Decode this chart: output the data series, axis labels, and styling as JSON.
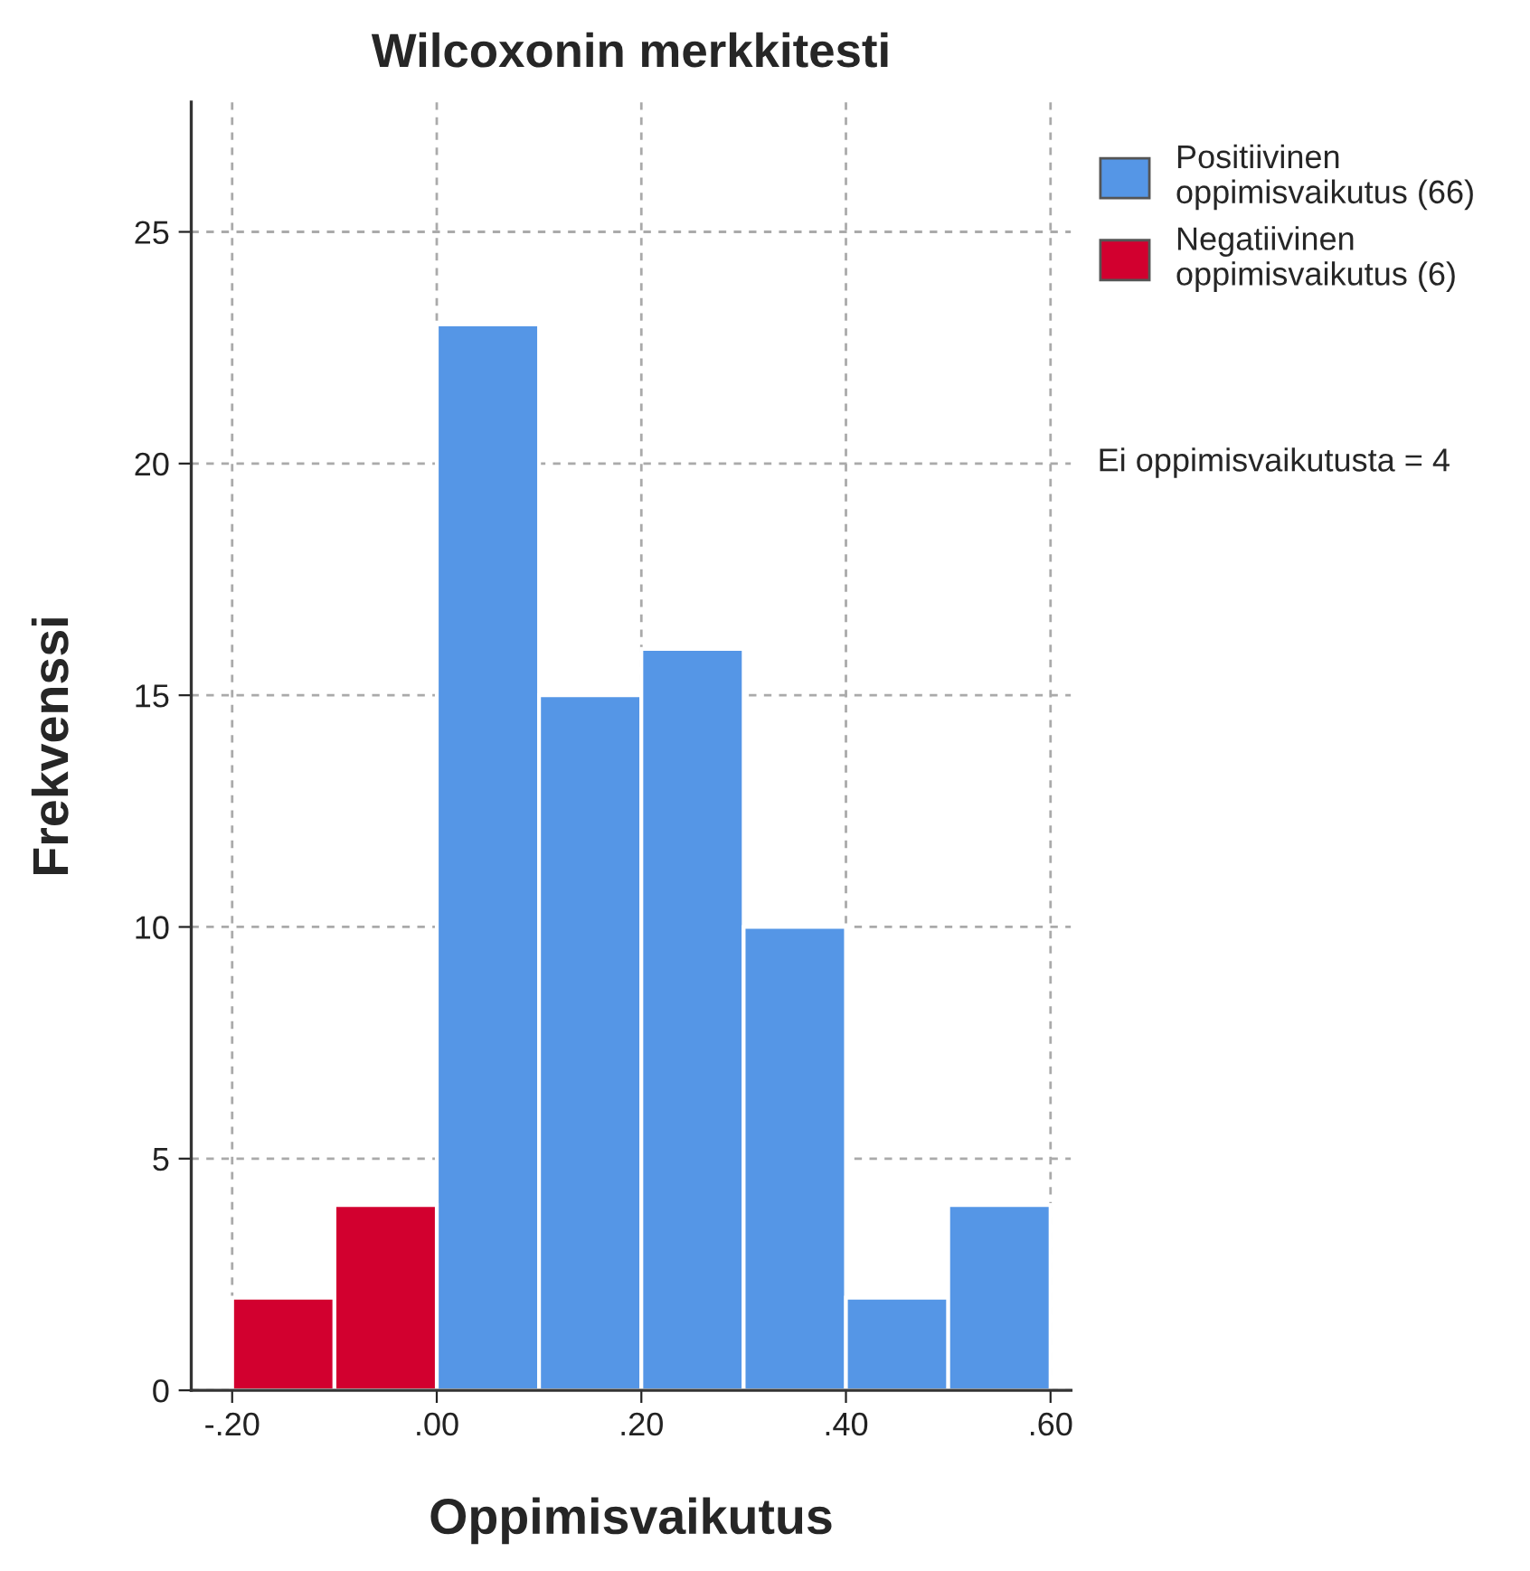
{
  "chart_data": {
    "type": "histogram",
    "title": "Wilcoxonin merkkitesti",
    "xlabel": "Oppimisvaikutus",
    "ylabel": "Frekvenssi",
    "bins": [
      -0.2,
      -0.1,
      0.0,
      0.1,
      0.2,
      0.3,
      0.4,
      0.5,
      0.6
    ],
    "series": [
      {
        "name": "Positiivinen oppimisvaikutus (66)",
        "color": "#5596e6",
        "values": [
          null,
          null,
          23,
          15,
          16,
          10,
          2,
          4
        ]
      },
      {
        "name": "Negatiivinen oppimisvaikutus (6)",
        "color": "#d2002f",
        "values": [
          2,
          4,
          null,
          null,
          null,
          null,
          null,
          null
        ]
      }
    ],
    "xlim": [
      -0.24,
      0.62
    ],
    "xticks": [
      {
        "value": -0.2,
        "label": "-.20"
      },
      {
        "value": 0.0,
        "label": ".00"
      },
      {
        "value": 0.2,
        "label": ".20"
      },
      {
        "value": 0.4,
        "label": ".40"
      },
      {
        "value": 0.6,
        "label": ".60"
      }
    ],
    "ylim": [
      0,
      27.8
    ],
    "yticks": [
      0,
      5,
      10,
      15,
      20,
      25
    ],
    "grid": true,
    "legend": "top right",
    "annotations": [
      "Ei oppimisvaikutusta = 4"
    ]
  }
}
